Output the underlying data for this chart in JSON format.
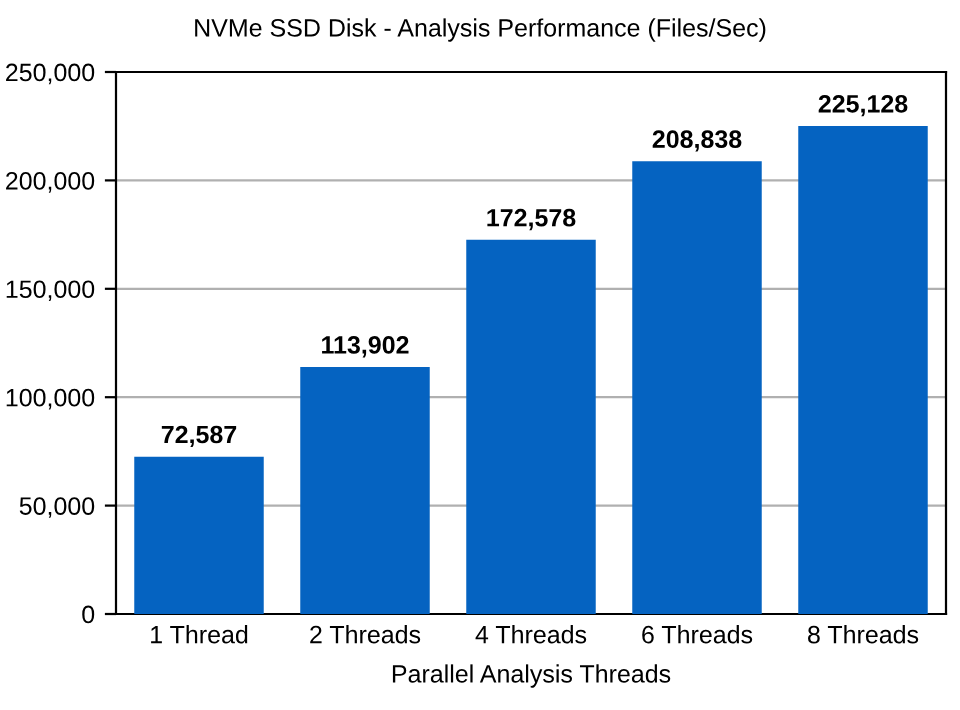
{
  "chart_data": {
    "type": "bar",
    "title": "NVMe SSD Disk - Analysis Performance (Files/Sec)",
    "xlabel": "Parallel Analysis Threads",
    "categories": [
      "1 Thread",
      "2 Threads",
      "4 Threads",
      "6 Threads",
      "8 Threads"
    ],
    "values": [
      72587,
      113902,
      172578,
      208838,
      225128
    ],
    "color": "#0563c1",
    "ylim": [
      0,
      250000
    ],
    "yticks": [
      {
        "value": 0,
        "label": "0"
      },
      {
        "value": 50000,
        "label": "50,000"
      },
      {
        "value": 100000,
        "label": "100,000"
      },
      {
        "value": 150000,
        "label": "150,000"
      },
      {
        "value": 200000,
        "label": "200,000"
      },
      {
        "value": 250000,
        "label": "250,000"
      }
    ],
    "grid": "y",
    "legend": false,
    "value_labels": [
      "72,587",
      "113,902",
      "172,578",
      "208,838",
      "225,128"
    ]
  }
}
